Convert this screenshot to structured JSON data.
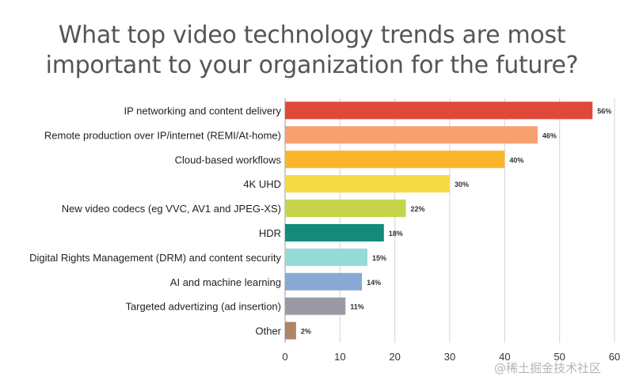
{
  "chart_data": {
    "type": "bar",
    "orientation": "horizontal",
    "title_lines": [
      "What top video technology trends are most",
      "important to your organization for the future?"
    ],
    "categories": [
      "IP networking and content delivery",
      "Remote production over IP/internet (REMI/At-home)",
      "Cloud-based workflows",
      "4K UHD",
      "New video codecs (eg VVC, AV1 and JPEG-XS)",
      "HDR",
      "Digital Rights Management (DRM) and content security",
      "AI and machine learning",
      "Targeted advertizing (ad insertion)",
      "Other"
    ],
    "values": [
      56,
      46,
      40,
      30,
      22,
      18,
      15,
      14,
      11,
      2
    ],
    "value_labels": [
      "56%",
      "46%",
      "40%",
      "30%",
      "22%",
      "18%",
      "15%",
      "14%",
      "11%",
      "2%"
    ],
    "colors": [
      "#e0493a",
      "#f7a070",
      "#fbb52b",
      "#f6da43",
      "#c4d54a",
      "#138b7c",
      "#94dad6",
      "#87a9d4",
      "#9a9aa4",
      "#b08467"
    ],
    "xlim": [
      0,
      60
    ],
    "xticks": [
      "0",
      "10",
      "20",
      "30",
      "40",
      "50",
      "60"
    ],
    "grid": "vertical",
    "legend": "none"
  },
  "watermark": "@稀土掘金技术社区"
}
